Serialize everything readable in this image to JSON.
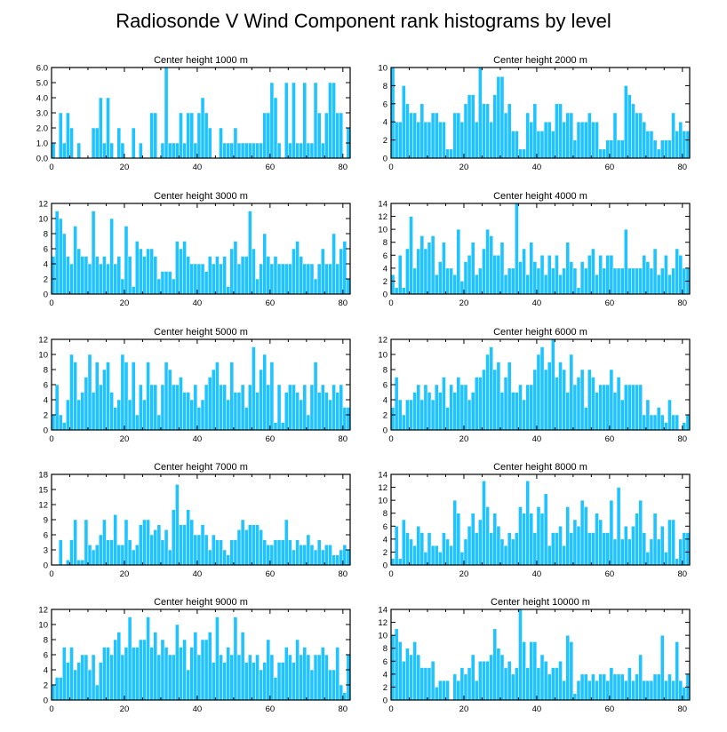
{
  "figure": {
    "title": "Radiosonde V Wind Component rank histograms by level",
    "bar_color": "#1ec3ff",
    "frame_color": "#000000"
  },
  "chart_data": [
    {
      "type": "bar",
      "title": "Center height 1000 m",
      "xlim": [
        0,
        82
      ],
      "ylim": [
        0,
        6
      ],
      "xticks": [
        "0",
        "20",
        "40",
        "60",
        "80"
      ],
      "yticks": [
        "0.0",
        "1.0",
        "2.0",
        "3.0",
        "4.0",
        "5.0",
        "6.0"
      ],
      "values": [
        1,
        0,
        3,
        1,
        3,
        2,
        0,
        1,
        0,
        0,
        0,
        2,
        2,
        4,
        1,
        4,
        1,
        0,
        2,
        1,
        0,
        0,
        2,
        0,
        1,
        0,
        0,
        3,
        3,
        0,
        1,
        6,
        1,
        1,
        1,
        3,
        1,
        3,
        3,
        1,
        3,
        4,
        3,
        2,
        0,
        0,
        2,
        1,
        1,
        1,
        2,
        1,
        1,
        1,
        1,
        1,
        1,
        1,
        3,
        3,
        5,
        4,
        1,
        0,
        5,
        1,
        5,
        1,
        1,
        5,
        1,
        1,
        5,
        3,
        1,
        3,
        5,
        5,
        3,
        3,
        0,
        2
      ]
    },
    {
      "type": "bar",
      "title": "Center height 2000 m",
      "xlim": [
        0,
        82
      ],
      "ylim": [
        0,
        10
      ],
      "xticks": [
        "0",
        "20",
        "40",
        "60",
        "80"
      ],
      "yticks": [
        "0",
        "2",
        "4",
        "6",
        "8",
        "10"
      ],
      "values": [
        10,
        4,
        4,
        8,
        6,
        5,
        5,
        4,
        6,
        4,
        4,
        5,
        5,
        4,
        4,
        1,
        1,
        5,
        5,
        4,
        6,
        7,
        7,
        4,
        10,
        6,
        6,
        4,
        7,
        9,
        9,
        5,
        6,
        3,
        3,
        1,
        1,
        5,
        4,
        6,
        3,
        3,
        4,
        4,
        3,
        6,
        6,
        4,
        5,
        5,
        2,
        4,
        4,
        4,
        5,
        4,
        4,
        1,
        1,
        2,
        2,
        5,
        2,
        2,
        8,
        7,
        6,
        5,
        5,
        4,
        3,
        3,
        2,
        1,
        2,
        2,
        2,
        5,
        3,
        4,
        3,
        3
      ]
    },
    {
      "type": "bar",
      "title": "Center height 3000 m",
      "xlim": [
        0,
        82
      ],
      "ylim": [
        0,
        12
      ],
      "xticks": [
        "0",
        "20",
        "40",
        "60",
        "80"
      ],
      "yticks": [
        "0",
        "2",
        "4",
        "6",
        "8",
        "10",
        "12"
      ],
      "values": [
        5,
        11,
        10,
        8,
        5,
        4,
        9,
        6,
        5,
        5,
        4,
        11,
        5,
        4,
        5,
        4,
        10,
        4,
        5,
        2,
        9,
        5,
        1,
        7,
        6,
        5,
        6,
        6,
        5,
        2,
        3,
        3,
        3,
        2,
        7,
        6,
        7,
        5,
        4,
        4,
        4,
        4,
        3,
        5,
        4,
        5,
        4,
        5,
        1,
        6,
        7,
        4,
        5,
        5,
        11,
        6,
        2,
        4,
        8,
        5,
        4,
        5,
        4,
        4,
        4,
        4,
        6,
        7,
        5,
        4,
        4,
        4,
        2,
        4,
        6,
        4,
        4,
        8,
        4,
        6,
        7,
        2
      ]
    },
    {
      "type": "bar",
      "title": "Center height 4000 m",
      "xlim": [
        0,
        82
      ],
      "ylim": [
        0,
        14
      ],
      "xticks": [
        "0",
        "20",
        "40",
        "60",
        "80"
      ],
      "yticks": [
        "0",
        "2",
        "4",
        "6",
        "8",
        "10",
        "12",
        "14"
      ],
      "values": [
        3,
        1,
        6,
        1,
        7,
        12,
        4,
        7,
        9,
        7,
        8,
        9,
        3,
        5,
        8,
        4,
        4,
        3,
        10,
        2,
        5,
        6,
        8,
        3,
        4,
        7,
        10,
        9,
        6,
        6,
        8,
        3,
        4,
        4,
        14,
        5,
        7,
        3,
        8,
        5,
        4,
        6,
        3,
        6,
        4,
        6,
        3,
        4,
        8,
        5,
        4,
        1,
        5,
        4,
        6,
        7,
        3,
        6,
        4,
        6,
        6,
        4,
        4,
        4,
        10,
        4,
        4,
        4,
        4,
        6,
        5,
        4,
        7,
        3,
        4,
        6,
        3,
        4,
        7,
        6,
        4,
        4
      ]
    },
    {
      "type": "bar",
      "title": "Center height 5000 m",
      "xlim": [
        0,
        82
      ],
      "ylim": [
        0,
        12
      ],
      "xticks": [
        "0",
        "20",
        "40",
        "60",
        "80"
      ],
      "yticks": [
        "0",
        "2",
        "4",
        "6",
        "8",
        "10",
        "12"
      ],
      "values": [
        2,
        6,
        2,
        1,
        4,
        10,
        9,
        4,
        5,
        7,
        10,
        5,
        9,
        6,
        8,
        9,
        5,
        3,
        4,
        10,
        9,
        4,
        9,
        2,
        6,
        4,
        9,
        6,
        6,
        2,
        6,
        9,
        8,
        6,
        6,
        7,
        5,
        5,
        4,
        6,
        3,
        4,
        6,
        7,
        8,
        9,
        6,
        6,
        4,
        9,
        5,
        5,
        6,
        3,
        6,
        11,
        5,
        8,
        10,
        6,
        9,
        1,
        6,
        1,
        5,
        6,
        6,
        5,
        4,
        6,
        2,
        6,
        9,
        5,
        6,
        5,
        4,
        6,
        5,
        6,
        3,
        3
      ]
    },
    {
      "type": "bar",
      "title": "Center height 6000 m",
      "xlim": [
        0,
        82
      ],
      "ylim": [
        0,
        12
      ],
      "xticks": [
        "0",
        "20",
        "40",
        "60",
        "80"
      ],
      "yticks": [
        "0",
        "2",
        "4",
        "6",
        "8",
        "10",
        "12"
      ],
      "values": [
        3,
        7,
        4,
        2,
        4,
        4,
        5,
        6,
        4,
        6,
        5,
        4,
        6,
        5,
        7,
        3,
        6,
        5,
        7,
        6,
        6,
        4,
        5,
        7,
        7,
        8,
        10,
        11,
        8,
        9,
        5,
        7,
        9,
        5,
        5,
        6,
        4,
        6,
        6,
        8,
        10,
        11,
        8,
        9,
        12,
        7,
        9,
        8,
        5,
        10,
        6,
        7,
        8,
        3,
        8,
        7,
        5,
        6,
        6,
        6,
        8,
        5,
        7,
        4,
        6,
        6,
        6,
        6,
        6,
        2,
        4,
        2,
        2,
        3,
        2,
        1,
        4,
        2,
        2,
        0,
        1,
        2
      ]
    },
    {
      "type": "bar",
      "title": "Center height 7000 m",
      "xlim": [
        0,
        82
      ],
      "ylim": [
        0,
        18
      ],
      "xticks": [
        "0",
        "20",
        "40",
        "60",
        "80"
      ],
      "yticks": [
        "0",
        "3",
        "6",
        "9",
        "12",
        "15",
        "18"
      ],
      "values": [
        0,
        0,
        5,
        0,
        1,
        5,
        9,
        1,
        1,
        9,
        4,
        3,
        4,
        6,
        9,
        5,
        5,
        10,
        4,
        4,
        9,
        5,
        3,
        4,
        8,
        9,
        9,
        6,
        7,
        8,
        5,
        7,
        3,
        11,
        16,
        8,
        8,
        11,
        9,
        6,
        6,
        8,
        6,
        3,
        6,
        5,
        5,
        3,
        2,
        5,
        5,
        7,
        9,
        7,
        8,
        8,
        8,
        7,
        5,
        4,
        4,
        5,
        5,
        5,
        9,
        5,
        3,
        5,
        4,
        4,
        6,
        4,
        3,
        5,
        3,
        4,
        4,
        2,
        2,
        3,
        4,
        3
      ]
    },
    {
      "type": "bar",
      "title": "Center height 8000 m",
      "xlim": [
        0,
        82
      ],
      "ylim": [
        0,
        14
      ],
      "xticks": [
        "0",
        "20",
        "40",
        "60",
        "80"
      ],
      "yticks": [
        "0",
        "2",
        "4",
        "6",
        "8",
        "10",
        "12",
        "14"
      ],
      "values": [
        1,
        6,
        1,
        7,
        5,
        4,
        3,
        6,
        5,
        2,
        5,
        3,
        3,
        2,
        5,
        4,
        3,
        10,
        8,
        2,
        4,
        6,
        8,
        5,
        7,
        13,
        9,
        5,
        8,
        6,
        4,
        3,
        5,
        4,
        5,
        9,
        8,
        13,
        8,
        5,
        9,
        8,
        11,
        3,
        5,
        5,
        6,
        3,
        9,
        5,
        7,
        6,
        10,
        9,
        5,
        5,
        8,
        7,
        5,
        5,
        10,
        4,
        12,
        4,
        6,
        4,
        6,
        8,
        10,
        5,
        2,
        4,
        8,
        4,
        6,
        2,
        7,
        7,
        1,
        4,
        5,
        5
      ]
    },
    {
      "type": "bar",
      "title": "Center height 9000 m",
      "xlim": [
        0,
        82
      ],
      "ylim": [
        0,
        12
      ],
      "xticks": [
        "0",
        "20",
        "40",
        "60",
        "80"
      ],
      "yticks": [
        "0",
        "2",
        "4",
        "6",
        "8",
        "10",
        "12"
      ],
      "values": [
        2,
        3,
        3,
        7,
        5,
        7,
        4,
        5,
        6,
        6,
        4,
        6,
        2,
        5,
        7,
        7,
        6,
        8,
        9,
        6,
        7,
        11,
        7,
        7,
        8,
        8,
        11,
        7,
        9,
        6,
        8,
        7,
        6,
        6,
        10,
        7,
        8,
        4,
        7,
        9,
        6,
        8,
        8,
        9,
        5,
        11,
        6,
        5,
        7,
        6,
        11,
        6,
        9,
        5,
        6,
        5,
        6,
        4,
        5,
        8,
        6,
        3,
        5,
        5,
        7,
        6,
        5,
        8,
        6,
        7,
        6,
        4,
        6,
        6,
        7,
        6,
        4,
        4,
        7,
        2,
        1,
        6
      ]
    },
    {
      "type": "bar",
      "title": "Center height 10000 m",
      "xlim": [
        0,
        82
      ],
      "ylim": [
        0,
        14
      ],
      "xticks": [
        "0",
        "20",
        "40",
        "60",
        "80"
      ],
      "yticks": [
        "0",
        "2",
        "4",
        "6",
        "8",
        "10",
        "12",
        "14"
      ],
      "values": [
        10,
        11,
        9,
        6,
        8,
        7,
        9,
        7,
        5,
        5,
        5,
        6,
        2,
        3,
        3,
        3,
        0,
        4,
        3,
        5,
        4,
        5,
        7,
        3,
        6,
        6,
        6,
        7,
        11,
        8,
        7,
        5,
        6,
        4,
        5,
        14,
        9,
        5,
        9,
        9,
        5,
        7,
        6,
        4,
        5,
        5,
        6,
        3,
        10,
        9,
        1,
        3,
        4,
        4,
        3,
        4,
        3,
        4,
        4,
        3,
        5,
        4,
        4,
        4,
        3,
        5,
        3,
        4,
        7,
        3,
        3,
        3,
        4,
        4,
        10,
        3,
        4,
        3,
        9,
        3,
        2,
        4
      ]
    }
  ]
}
